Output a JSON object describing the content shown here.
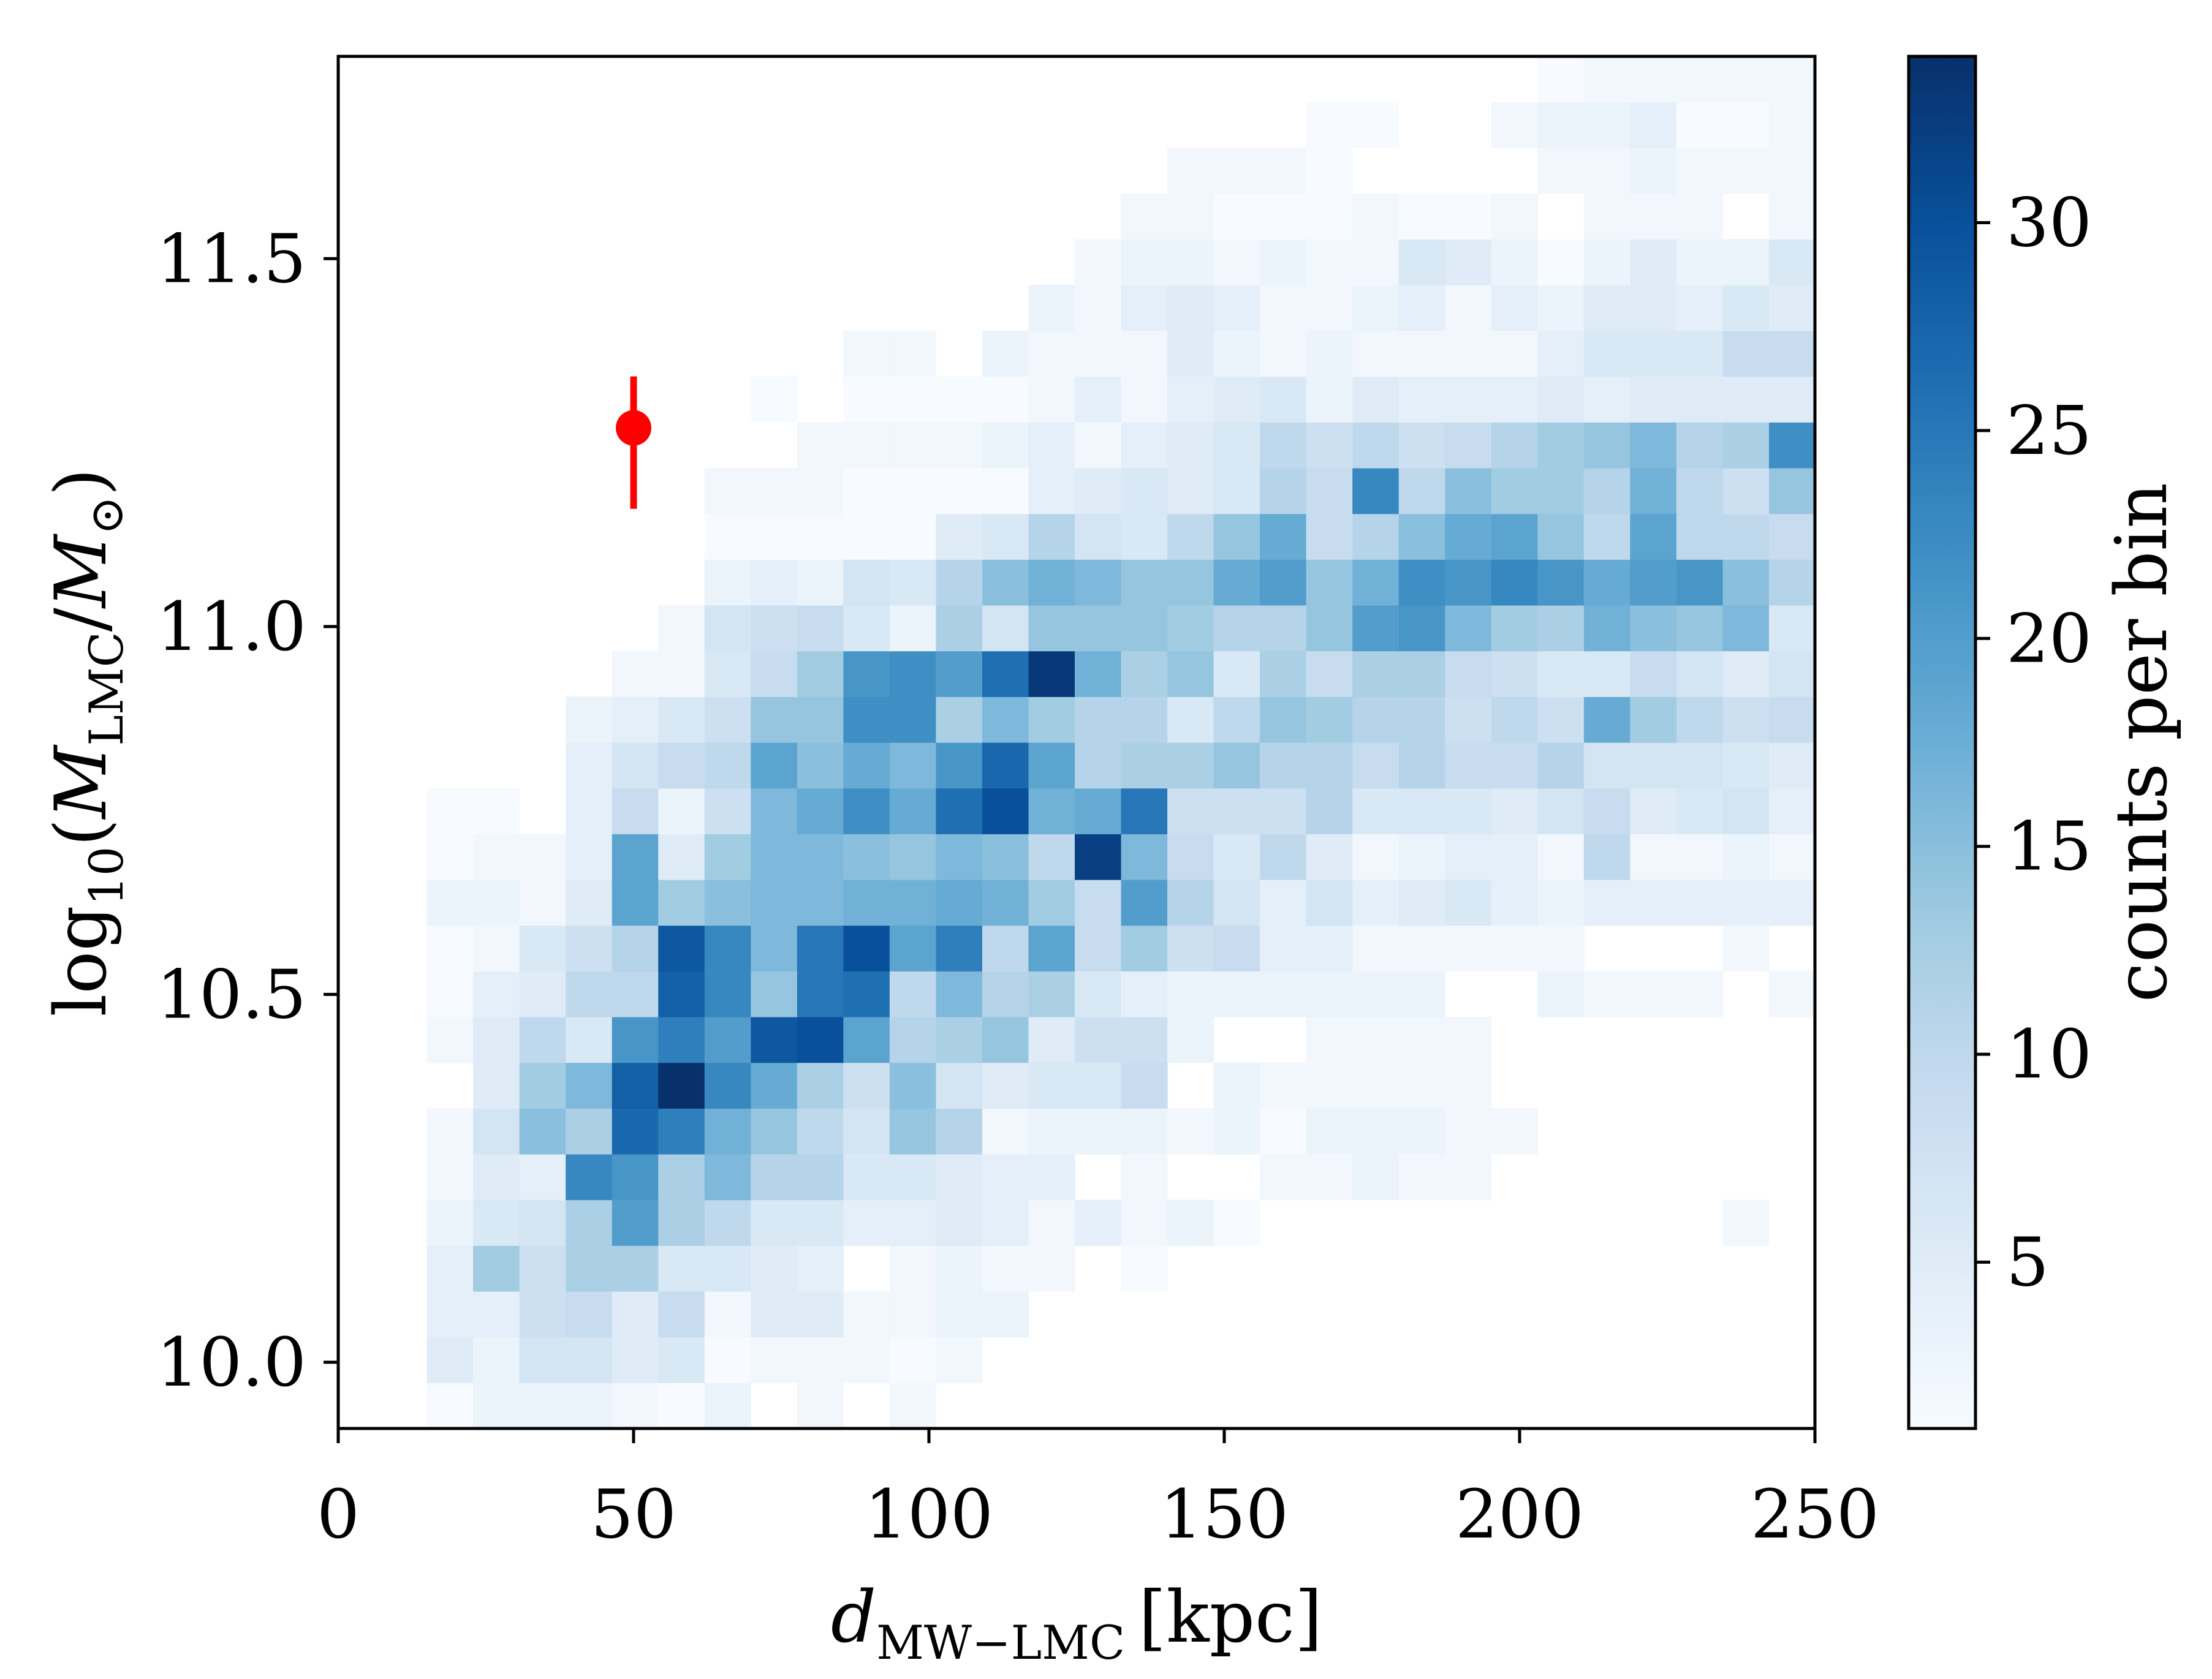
{
  "chart_data": {
    "type": "heatmap",
    "title": "",
    "xlabel": {
      "main": "d",
      "sub": "MW−LMC",
      "unit": "[kpc]"
    },
    "ylabel": {
      "prefix": "log",
      "prefix_sub": "10",
      "open": "(",
      "num": "M",
      "num_sub": "LMC",
      "slash": "/",
      "den": "M",
      "den_sub": "⊙",
      "close": ")"
    },
    "xlim": [
      0,
      250
    ],
    "ylim": [
      9.91,
      11.775
    ],
    "xticks": [
      0,
      50,
      100,
      150,
      200,
      250
    ],
    "xtick_labels": [
      "0",
      "50",
      "100",
      "150",
      "200",
      "250"
    ],
    "yticks": [
      10.0,
      10.5,
      11.0,
      11.5
    ],
    "ytick_labels": [
      "10.0",
      "10.5",
      "11.0",
      "11.5"
    ],
    "colorbar": {
      "label": "counts per bin",
      "range": [
        1,
        34
      ],
      "ticks": [
        5,
        10,
        15,
        20,
        25,
        30
      ],
      "tick_labels": [
        "5",
        "10",
        "15",
        "20",
        "25",
        "30"
      ],
      "colormap": "Blues",
      "stops": [
        "#f7fbff",
        "#deebf7",
        "#c6dbef",
        "#9ecae1",
        "#6baed6",
        "#4292c6",
        "#2171b5",
        "#08519c",
        "#08306b"
      ]
    },
    "grid": false,
    "bins": {
      "x0": 15,
      "dx": 7.835,
      "y0": 9.91,
      "dy": 0.06217,
      "rows_bottom_to_top": [
        [
          1,
          3,
          3,
          3,
          2,
          1,
          3,
          0,
          2,
          0,
          2,
          0,
          0,
          0,
          0,
          0,
          0,
          0,
          0,
          0,
          0,
          0,
          0,
          0,
          0,
          0,
          0,
          0,
          0,
          0
        ],
        [
          5,
          3,
          7,
          7,
          5,
          6,
          1,
          2,
          2,
          2,
          1,
          2,
          0,
          0,
          0,
          0,
          0,
          0,
          0,
          0,
          0,
          0,
          0,
          0,
          0,
          0,
          0,
          0,
          0,
          0
        ],
        [
          4,
          4,
          8,
          9,
          5,
          9,
          2,
          5,
          5,
          2,
          2,
          3,
          3,
          0,
          0,
          0,
          0,
          0,
          0,
          0,
          0,
          0,
          0,
          0,
          0,
          0,
          0,
          0,
          0,
          0
        ],
        [
          4,
          13,
          8,
          12,
          12,
          6,
          6,
          5,
          4,
          0,
          2,
          3,
          2,
          2,
          0,
          1,
          0,
          0,
          0,
          0,
          0,
          0,
          0,
          0,
          0,
          0,
          0,
          0,
          0,
          0
        ],
        [
          3,
          6,
          7,
          12,
          20,
          12,
          10,
          6,
          6,
          4,
          4,
          5,
          4,
          2,
          4,
          2,
          3,
          1,
          0,
          0,
          0,
          0,
          0,
          0,
          0,
          0,
          0,
          0,
          2,
          0
        ],
        [
          2,
          5,
          4,
          23,
          21,
          12,
          16,
          11,
          11,
          6,
          6,
          5,
          4,
          4,
          0,
          2,
          0,
          0,
          2,
          2,
          3,
          2,
          2,
          0,
          0,
          0,
          0,
          0,
          0,
          0
        ],
        [
          2,
          7,
          15,
          12,
          27,
          24,
          17,
          14,
          10,
          7,
          14,
          11,
          2,
          3,
          3,
          3,
          2,
          3,
          1,
          3,
          3,
          3,
          2,
          2,
          0,
          0,
          0,
          0,
          0,
          0
        ],
        [
          0,
          5,
          13,
          16,
          28,
          34,
          23,
          18,
          12,
          8,
          15,
          7,
          5,
          6,
          6,
          9,
          0,
          3,
          2,
          2,
          2,
          2,
          2,
          0,
          0,
          0,
          0,
          0,
          0,
          0
        ],
        [
          2,
          5,
          10,
          6,
          21,
          24,
          20,
          29,
          30,
          19,
          11,
          12,
          14,
          5,
          8,
          8,
          3,
          0,
          0,
          2,
          2,
          2,
          2,
          0,
          0,
          0,
          0,
          0,
          0,
          0
        ],
        [
          1,
          4,
          5,
          10,
          10,
          28,
          23,
          14,
          25,
          26,
          10,
          16,
          11,
          12,
          6,
          4,
          3,
          3,
          3,
          3,
          3,
          3,
          0,
          0,
          3,
          2,
          2,
          2,
          0,
          2
        ],
        [
          1,
          2,
          6,
          8,
          11,
          29,
          23,
          16,
          25,
          30,
          19,
          24,
          10,
          19,
          9,
          13,
          8,
          9,
          4,
          4,
          2,
          2,
          2,
          2,
          2,
          0,
          0,
          0,
          2,
          0
        ],
        [
          3,
          3,
          2,
          5,
          19,
          13,
          15,
          16,
          16,
          17,
          17,
          18,
          17,
          13,
          9,
          20,
          11,
          7,
          4,
          7,
          4,
          5,
          6,
          4,
          3,
          4,
          4,
          4,
          4,
          4
        ],
        [
          1,
          2,
          2,
          4,
          19,
          5,
          13,
          16,
          16,
          15,
          14,
          16,
          15,
          10,
          32,
          16,
          9,
          6,
          10,
          5,
          2,
          3,
          4,
          4,
          2,
          10,
          2,
          2,
          3,
          2
        ],
        [
          1,
          1,
          0,
          4,
          9,
          3,
          8,
          16,
          18,
          22,
          18,
          26,
          30,
          17,
          18,
          25,
          8,
          8,
          8,
          11,
          6,
          6,
          6,
          5,
          7,
          9,
          5,
          6,
          7,
          4
        ],
        [
          0,
          0,
          0,
          4,
          7,
          9,
          10,
          19,
          15,
          18,
          16,
          21,
          27,
          19,
          11,
          12,
          12,
          14,
          11,
          11,
          9,
          11,
          9,
          9,
          11,
          7,
          7,
          7,
          6,
          5
        ],
        [
          0,
          0,
          0,
          3,
          4,
          6,
          8,
          14,
          14,
          22,
          22,
          12,
          16,
          13,
          11,
          11,
          6,
          10,
          14,
          13,
          11,
          11,
          8,
          10,
          8,
          18,
          13,
          10,
          8,
          9
        ],
        [
          0,
          0,
          0,
          0,
          2,
          2,
          6,
          9,
          13,
          21,
          22,
          20,
          26,
          33,
          17,
          12,
          14,
          6,
          12,
          9,
          12,
          12,
          9,
          8,
          6,
          6,
          9,
          7,
          5,
          7
        ],
        [
          0,
          0,
          0,
          0,
          0,
          2,
          7,
          8,
          9,
          6,
          3,
          12,
          7,
          14,
          14,
          14,
          13,
          11,
          11,
          14,
          20,
          21,
          16,
          13,
          12,
          17,
          15,
          14,
          16,
          6
        ],
        [
          0,
          0,
          0,
          0,
          0,
          0,
          3,
          4,
          3,
          7,
          6,
          11,
          15,
          17,
          16,
          14,
          14,
          18,
          20,
          14,
          17,
          22,
          21,
          23,
          21,
          18,
          20,
          21,
          15,
          11
        ],
        [
          0,
          0,
          0,
          0,
          0,
          0,
          1,
          1,
          1,
          1,
          1,
          5,
          6,
          11,
          7,
          6,
          10,
          14,
          18,
          9,
          11,
          15,
          18,
          19,
          14,
          10,
          19,
          10,
          10,
          9
        ],
        [
          0,
          0,
          0,
          0,
          0,
          0,
          2,
          2,
          2,
          1,
          1,
          1,
          1,
          4,
          5,
          6,
          5,
          6,
          11,
          9,
          23,
          10,
          15,
          13,
          13,
          11,
          17,
          10,
          8,
          14
        ],
        [
          0,
          0,
          0,
          0,
          0,
          0,
          0,
          0,
          2,
          2,
          2,
          2,
          3,
          4,
          2,
          4,
          5,
          6,
          10,
          8,
          10,
          8,
          9,
          11,
          13,
          14,
          16,
          11,
          12,
          22
        ],
        [
          0,
          0,
          0,
          0,
          0,
          0,
          0,
          1,
          0,
          1,
          1,
          1,
          1,
          2,
          4,
          2,
          4,
          5,
          6,
          3,
          5,
          4,
          4,
          4,
          5,
          4,
          5,
          5,
          5,
          5
        ],
        [
          0,
          0,
          0,
          0,
          0,
          0,
          0,
          0,
          0,
          2,
          2,
          0,
          3,
          2,
          2,
          2,
          5,
          3,
          2,
          3,
          2,
          2,
          2,
          2,
          4,
          6,
          6,
          6,
          9,
          9
        ],
        [
          0,
          0,
          0,
          0,
          0,
          0,
          0,
          0,
          0,
          0,
          0,
          0,
          0,
          3,
          2,
          4,
          5,
          4,
          2,
          2,
          3,
          4,
          2,
          4,
          3,
          5,
          5,
          4,
          6,
          5
        ],
        [
          0,
          0,
          0,
          0,
          0,
          0,
          0,
          0,
          0,
          0,
          0,
          0,
          0,
          0,
          2,
          3,
          3,
          2,
          3,
          2,
          2,
          6,
          5,
          3,
          1,
          3,
          5,
          3,
          3,
          6
        ],
        [
          0,
          0,
          0,
          0,
          0,
          0,
          0,
          0,
          0,
          0,
          0,
          0,
          0,
          0,
          0,
          2,
          2,
          1,
          1,
          1,
          2,
          1,
          1,
          2,
          0,
          2,
          2,
          2,
          0,
          2
        ],
        [
          0,
          0,
          0,
          0,
          0,
          0,
          0,
          0,
          0,
          0,
          0,
          0,
          0,
          0,
          0,
          0,
          2,
          2,
          2,
          1,
          0,
          0,
          0,
          0,
          2,
          2,
          3,
          2,
          2,
          2
        ],
        [
          0,
          0,
          0,
          0,
          0,
          0,
          0,
          0,
          0,
          0,
          0,
          0,
          0,
          0,
          0,
          0,
          0,
          0,
          0,
          1,
          1,
          0,
          0,
          2,
          3,
          3,
          4,
          1,
          1,
          2
        ],
        [
          0,
          0,
          0,
          0,
          0,
          0,
          0,
          0,
          0,
          0,
          0,
          0,
          0,
          0,
          0,
          0,
          0,
          0,
          0,
          0,
          0,
          0,
          0,
          0,
          1,
          2,
          2,
          2,
          2,
          2
        ]
      ]
    },
    "point": {
      "x": 50,
      "y": 11.27,
      "yerr_low": 0.11,
      "yerr_high": 0.07,
      "color": "#ff0000"
    }
  }
}
